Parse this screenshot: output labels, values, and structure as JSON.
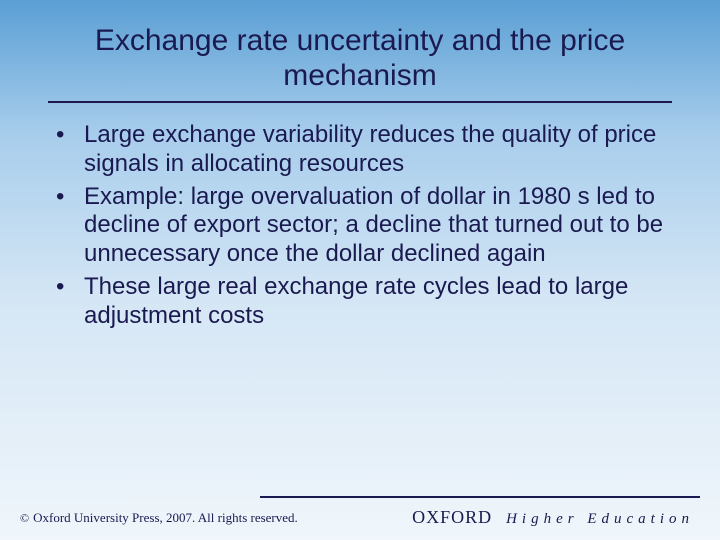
{
  "colors": {
    "text": "#1a1a50",
    "gradient_top": "#5a9fd4",
    "gradient_bottom": "#f0f6fb",
    "rule": "#1a1a50"
  },
  "typography": {
    "title_fontsize": 30,
    "body_fontsize": 24,
    "footer_fontsize": 13,
    "brand_oxford_fontsize": 18,
    "brand_he_fontsize": 15
  },
  "title": "Exchange rate uncertainty and the price mechanism",
  "bullets": [
    "Large exchange variability reduces the quality of price signals in allocating resources",
    "Example: large overvaluation of dollar in 1980 s led to decline of export sector; a decline that turned out to be unnecessary once the dollar declined again",
    "These large real exchange rate cycles lead to large adjustment costs"
  ],
  "footer": {
    "copyright_symbol": "©",
    "copyright_text": "Oxford University Press, 2007. All rights reserved.",
    "brand_oxford": "OXFORD",
    "brand_he": "Higher Education"
  }
}
